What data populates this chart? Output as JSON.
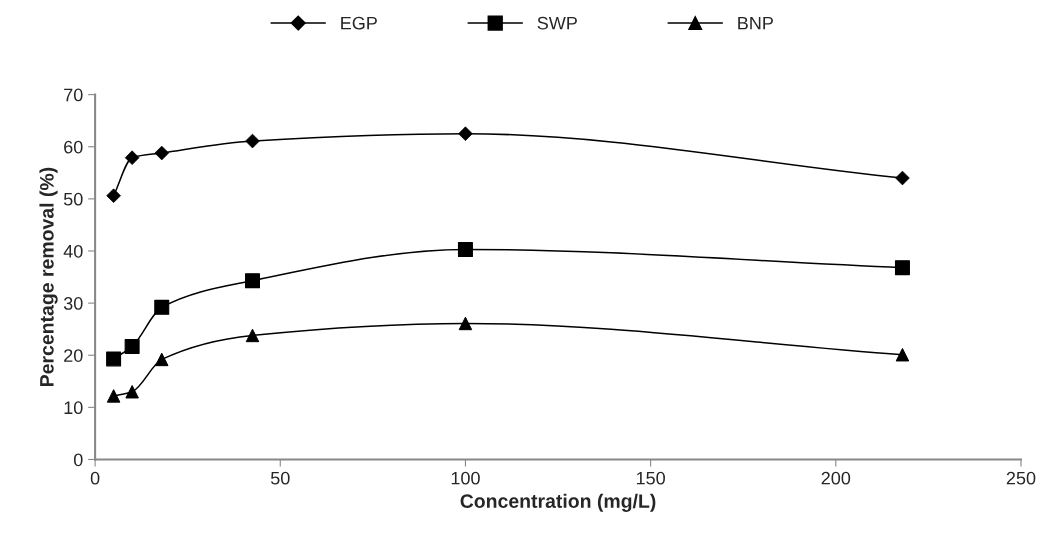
{
  "chart_data": {
    "type": "line",
    "xlabel": "Concentration (mg/L)",
    "ylabel": "Percentage removal (%)",
    "x": [
      5,
      10,
      18,
      42.5,
      100,
      218
    ],
    "series": [
      {
        "name": "EGP",
        "color": "#000000",
        "marker": "diamond",
        "values": [
          50.6,
          57.9,
          58.8,
          61.1,
          62.5,
          54.0
        ]
      },
      {
        "name": "SWP",
        "color": "#000000",
        "marker": "square",
        "values": [
          19.3,
          21.7,
          29.2,
          34.3,
          40.3,
          36.8
        ]
      },
      {
        "name": "BNP",
        "color": "#000000",
        "marker": "triangle",
        "values": [
          12.2,
          13.0,
          19.2,
          23.8,
          26.1,
          20.1
        ]
      }
    ],
    "xlim": [
      0,
      250
    ],
    "xticks": [
      0,
      50,
      100,
      150,
      200,
      250
    ],
    "ylim": [
      0,
      70
    ],
    "yticks": [
      0,
      10,
      20,
      30,
      40,
      50,
      60,
      70
    ],
    "grid": false,
    "legend": "top",
    "line_style": "solid"
  }
}
